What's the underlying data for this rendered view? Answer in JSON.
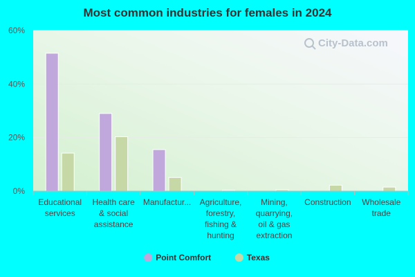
{
  "chart_data": {
    "type": "bar",
    "title": "Most common industries for females in 2024",
    "categories": [
      [
        "Educational",
        "services"
      ],
      [
        "Health care",
        "& social",
        "assistance"
      ],
      [
        "Manufactur..."
      ],
      [
        "Agriculture,",
        "forestry,",
        "fishing &",
        "hunting"
      ],
      [
        "Mining,",
        "quarrying,",
        "oil & gas",
        "extraction"
      ],
      [
        "Construction"
      ],
      [
        "Wholesale",
        "trade"
      ]
    ],
    "series": [
      {
        "name": "Point Comfort",
        "color": "#c0a8dc",
        "values": [
          51.5,
          29.0,
          15.5,
          0,
          0,
          0,
          0
        ]
      },
      {
        "name": "Texas",
        "color": "#c5d8a6",
        "values": [
          14.2,
          20.3,
          5.1,
          0.3,
          0.5,
          2.2,
          1.5
        ]
      }
    ],
    "yticks": [
      "0%",
      "20%",
      "40%",
      "60%"
    ],
    "ylim": [
      0,
      60
    ],
    "grid": true,
    "legend_position": "bottom-center",
    "watermark": "City-Data.com"
  }
}
